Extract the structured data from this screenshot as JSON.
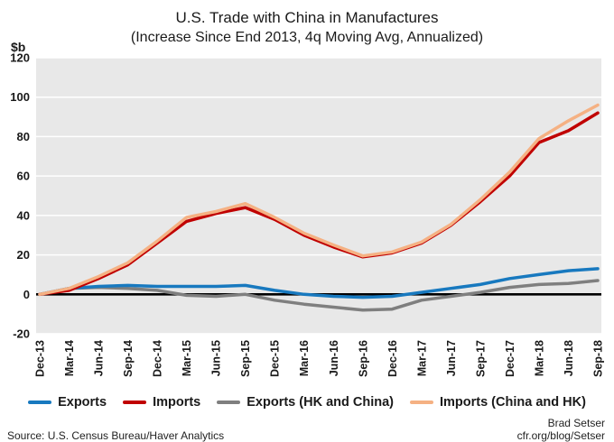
{
  "title": {
    "line1": "U.S. Trade with China in Manufactures",
    "line2": "(Increase Since End 2013, 4q Moving Avg, Annualized)"
  },
  "footer": {
    "source": "Source: U.S. Census Bureau/Haver Analytics",
    "author": "Brad Setser",
    "url": "cfr.org/blog/Setser"
  },
  "chart_data": {
    "type": "line",
    "title": "U.S. Trade with China in Manufactures",
    "subtitle": "(Increase Since End 2013, 4q Moving Avg, Annualized)",
    "ylabel": "$b",
    "xlabel": "",
    "ylim": [
      -20,
      120
    ],
    "ytick_step": 20,
    "grid": true,
    "legend_position": "bottom",
    "categories": [
      "Dec-13",
      "Mar-14",
      "Jun-14",
      "Sep-14",
      "Dec-14",
      "Mar-15",
      "Jun-15",
      "Sep-15",
      "Dec-15",
      "Mar-16",
      "Jun-16",
      "Sep-16",
      "Dec-16",
      "Mar-17",
      "Jun-17",
      "Sep-17",
      "Dec-17",
      "Mar-18",
      "Jun-18",
      "Sep-18"
    ],
    "series": [
      {
        "name": "Exports",
        "color": "#1879bf",
        "values": [
          0,
          3,
          4,
          4.5,
          4,
          4,
          4,
          4.5,
          2,
          0,
          -1,
          -1.5,
          -1,
          1,
          3,
          5,
          8,
          10,
          12,
          13
        ]
      },
      {
        "name": "Imports",
        "color": "#c00000",
        "values": [
          0,
          2,
          8,
          15,
          26,
          37,
          41,
          44,
          38,
          30,
          24,
          19,
          21,
          26,
          35,
          47,
          60,
          77,
          83,
          92
        ]
      },
      {
        "name": "Exports (HK and China)",
        "color": "#7f7f7f",
        "values": [
          0,
          3,
          3.5,
          3,
          2,
          -0.5,
          -1,
          0,
          -3,
          -5,
          -6.5,
          -8,
          -7.5,
          -3,
          -1,
          1,
          3.5,
          5,
          5.5,
          7
        ]
      },
      {
        "name": "Imports (China and HK)",
        "color": "#f5b183",
        "values": [
          0,
          3,
          9,
          16,
          27,
          39,
          42,
          46,
          39,
          31,
          25,
          19.5,
          21.5,
          26.5,
          35.5,
          48,
          62,
          79,
          88,
          96
        ]
      }
    ],
    "draw_order": [
      2,
      0,
      1,
      3
    ],
    "colors": {
      "plot_bg": "#e8e8e8",
      "grid": "#ffffff",
      "zero_line": "#000000",
      "text": "#1a1a1a"
    }
  }
}
